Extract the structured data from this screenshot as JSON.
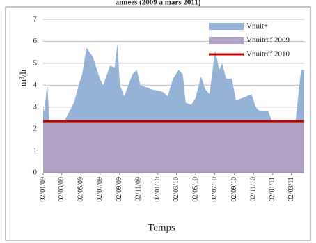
{
  "chart_data": {
    "type": "area",
    "title": "années (2009 à mars 2011)",
    "x_label": "Temps",
    "y_label": "m³/h",
    "xlim": [
      "02/01/09",
      "12/04/11"
    ],
    "xticks": [
      "02/01/09",
      "02/03/09",
      "02/05/09",
      "02/07/09",
      "02/09/09",
      "02/11/09",
      "02/01/10",
      "02/03/10",
      "02/05/10",
      "02/07/10",
      "02/09/10",
      "02/11/10",
      "02/01/11",
      "02/03/11"
    ],
    "ylim": [
      0,
      7
    ],
    "yticks": [
      0,
      1,
      2,
      3,
      4,
      5,
      6,
      7
    ],
    "grid": true,
    "legend": "top-right",
    "series": [
      {
        "name": "Vnuit+",
        "color": "#95b3d7",
        "style": "area",
        "x": [
          "02/01/09",
          "06/01/09",
          "15/01/09",
          "22/01/09",
          "12/03/09",
          "10/04/09",
          "25/04/09",
          "06/05/09",
          "20/05/09",
          "09/06/09",
          "01/07/09",
          "12/07/09",
          "03/08/09",
          "17/08/09",
          "26/08/09",
          "03/09/09",
          "17/09/09",
          "13/10/09",
          "27/10/09",
          "07/11/09",
          "15/12/09",
          "17/01/10",
          "02/02/10",
          "19/02/10",
          "09/03/10",
          "22/03/10",
          "31/03/10",
          "18/04/10",
          "01/05/10",
          "19/05/10",
          "02/06/10",
          "15/06/10",
          "03/07/10",
          "16/07/10",
          "25/07/10",
          "07/08/10",
          "25/08/10",
          "07/09/10",
          "13/10/10",
          "26/10/10",
          "09/11/10",
          "22/11/10",
          "19/12/10",
          "01/01/11",
          "21/02/11",
          "15/03/11",
          "02/04/11",
          "12/04/11"
        ],
        "values": [
          3.0,
          2.8,
          4.1,
          2.3,
          2.4,
          3.2,
          4.0,
          4.5,
          5.7,
          5.3,
          4.3,
          4.0,
          4.9,
          4.8,
          5.9,
          4.0,
          3.5,
          4.5,
          4.7,
          4.0,
          3.8,
          3.7,
          3.5,
          4.3,
          4.7,
          4.5,
          3.2,
          3.1,
          3.4,
          4.4,
          3.8,
          3.6,
          5.6,
          4.7,
          5.0,
          4.3,
          4.3,
          3.3,
          3.5,
          3.6,
          3.0,
          2.8,
          2.8,
          2.3,
          2.4,
          2.3,
          4.7,
          4.7
        ]
      },
      {
        "name": "Vnuitref 2009",
        "color": "#b3a2c7",
        "style": "area",
        "x": [
          "02/01/09",
          "12/04/11"
        ],
        "values": [
          2.3,
          2.3
        ]
      },
      {
        "name": "Vnuitref 2010",
        "color": "#c00000",
        "style": "line",
        "x": [
          "02/01/09",
          "12/04/11"
        ],
        "values": [
          2.35,
          2.35
        ]
      }
    ]
  }
}
